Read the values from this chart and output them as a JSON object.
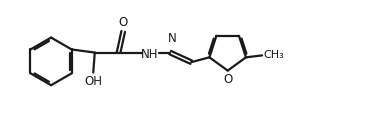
{
  "bg_color": "#ffffff",
  "line_color": "#1a1a1a",
  "line_width": 1.6,
  "font_size": 8.5,
  "figsize": [
    3.88,
    1.32
  ],
  "dpi": 100,
  "xlim": [
    0,
    10
  ],
  "ylim": [
    0,
    3.4
  ]
}
